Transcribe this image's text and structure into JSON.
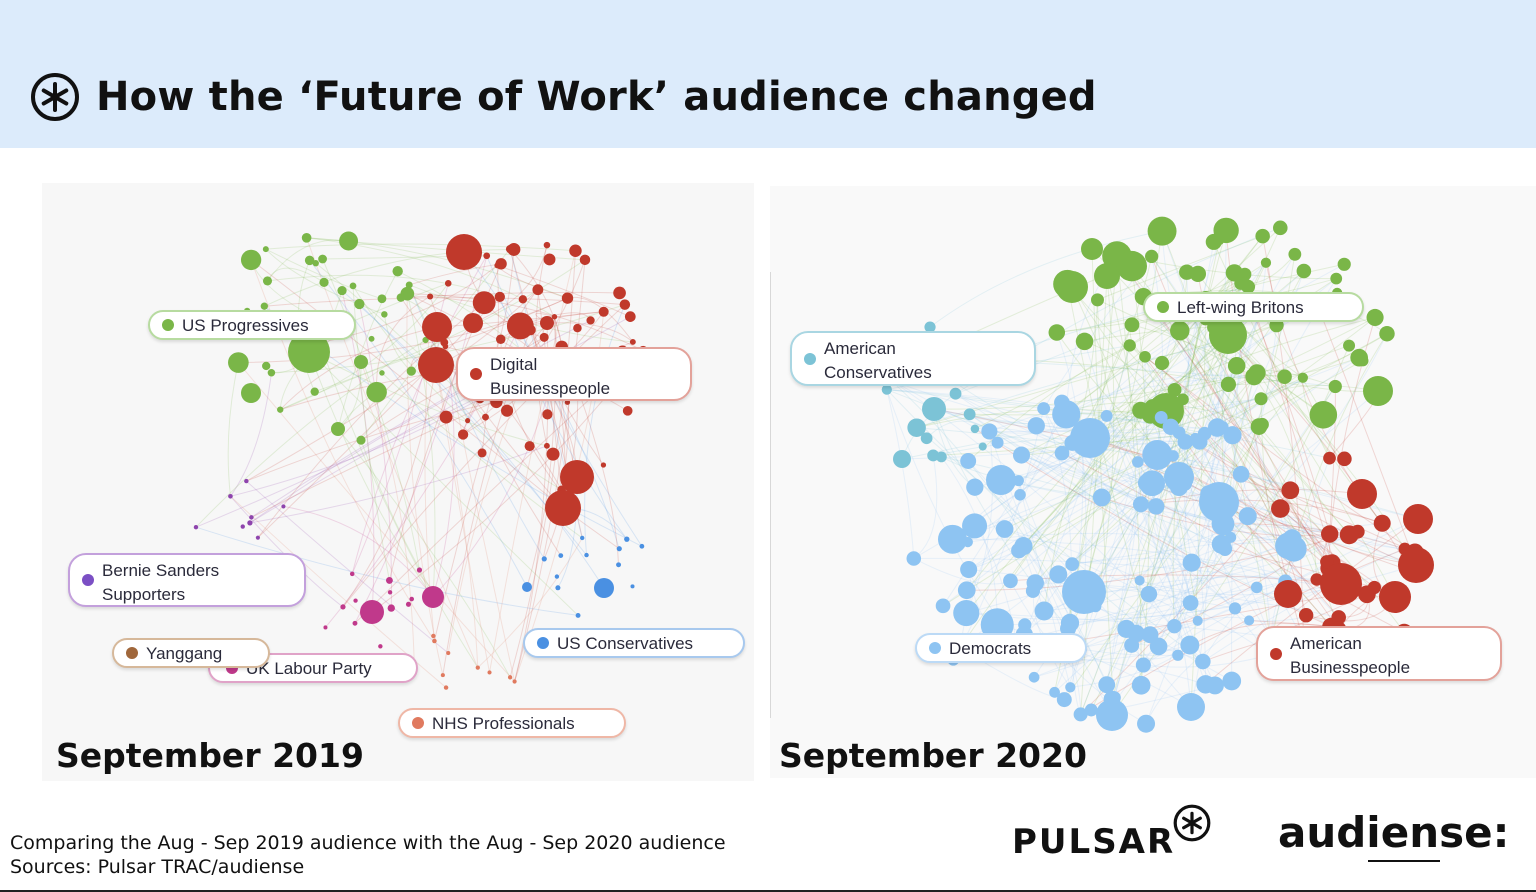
{
  "header": {
    "title": "How the ‘Future of Work’ audience changed",
    "logo_icon": "pulsar-asterisk-icon"
  },
  "colors": {
    "header_bg": "#dcebfb",
    "green": "#7ab648",
    "red": "#c0392b",
    "purple": "#8e44ad",
    "magenta": "#c0398b",
    "blue": "#4a90e2",
    "light_blue": "#8ec4f2",
    "teal": "#7cc3d6",
    "brown": "#a0673b",
    "salmon": "#e07a5f"
  },
  "left_network": {
    "caption": "September 2019",
    "labels": [
      {
        "text": "US Progressives",
        "color": "#7ab648"
      },
      {
        "text": "Digital Businesspeople",
        "color": "#c0392b"
      },
      {
        "text": "Bernie Sanders Supporters",
        "color": "#8e44ad"
      },
      {
        "text": "Yanggang",
        "color": "#a0673b"
      },
      {
        "text": "UK Labour Party",
        "color": "#c0398b"
      },
      {
        "text": "US Conservatives",
        "color": "#4a90e2"
      },
      {
        "text": "NHS Professionals",
        "color": "#e07a5f"
      }
    ]
  },
  "right_network": {
    "caption": "September 2020",
    "labels": [
      {
        "text": "Left-wing Britons",
        "color": "#7ab648"
      },
      {
        "text": "American Conservatives",
        "color": "#7cc3d6"
      },
      {
        "text": "Democrats",
        "color": "#8ec4f2"
      },
      {
        "text": "American Businesspeople",
        "color": "#c0392b"
      }
    ]
  },
  "footer": {
    "line1": "Comparing the Aug - Sep 2019 audience with the Aug - Sep 2020 audience",
    "line2": "Sources: Pulsar TRAC/audiense"
  },
  "brands": {
    "pulsar": "PULSAR",
    "audiense": "audiense:"
  }
}
